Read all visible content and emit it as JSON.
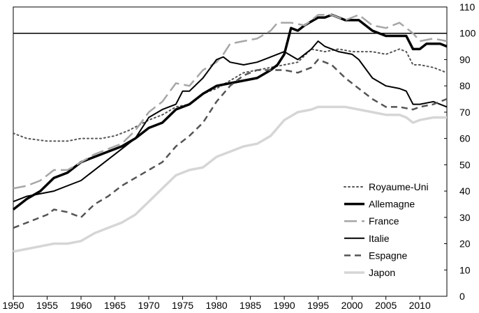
{
  "chart_data": {
    "type": "line",
    "title": "",
    "xlabel": "",
    "ylabel": "",
    "xlim": [
      1950,
      2014
    ],
    "ylim": [
      0,
      110
    ],
    "x_ticks": [
      1950,
      1955,
      1960,
      1965,
      1970,
      1975,
      1980,
      1985,
      1990,
      1995,
      2000,
      2005,
      2010
    ],
    "y_ticks": [
      0,
      10,
      20,
      30,
      40,
      50,
      60,
      70,
      80,
      90,
      100,
      110
    ],
    "y_axis_side": "right",
    "grid": false,
    "reference_line": 100,
    "legend_position": "bottom-right",
    "series": [
      {
        "name": "Royaume-Uni",
        "color": "#555555",
        "dash": "dotted",
        "width": 2,
        "points": [
          [
            1950,
            62
          ],
          [
            1952,
            60
          ],
          [
            1955,
            59
          ],
          [
            1958,
            59
          ],
          [
            1960,
            60
          ],
          [
            1963,
            60
          ],
          [
            1965,
            61
          ],
          [
            1967,
            63
          ],
          [
            1970,
            67
          ],
          [
            1972,
            69
          ],
          [
            1974,
            72
          ],
          [
            1976,
            73
          ],
          [
            1978,
            77
          ],
          [
            1980,
            79
          ],
          [
            1982,
            82
          ],
          [
            1984,
            85
          ],
          [
            1986,
            86
          ],
          [
            1988,
            87
          ],
          [
            1990,
            88
          ],
          [
            1992,
            89
          ],
          [
            1994,
            94
          ],
          [
            1996,
            93
          ],
          [
            1998,
            94
          ],
          [
            2000,
            93
          ],
          [
            2003,
            93
          ],
          [
            2005,
            92
          ],
          [
            2007,
            94
          ],
          [
            2008,
            93
          ],
          [
            2009,
            88
          ],
          [
            2010,
            88
          ],
          [
            2012,
            87
          ],
          [
            2014,
            85
          ]
        ]
      },
      {
        "name": "Allemagne",
        "color": "#000000",
        "dash": "solid",
        "width": 3.5,
        "points": [
          [
            1950,
            33
          ],
          [
            1952,
            37
          ],
          [
            1954,
            40
          ],
          [
            1956,
            45
          ],
          [
            1958,
            47
          ],
          [
            1960,
            51
          ],
          [
            1962,
            53
          ],
          [
            1964,
            55
          ],
          [
            1966,
            57
          ],
          [
            1968,
            60
          ],
          [
            1970,
            64
          ],
          [
            1972,
            66
          ],
          [
            1974,
            71
          ],
          [
            1976,
            73
          ],
          [
            1978,
            77
          ],
          [
            1980,
            80
          ],
          [
            1982,
            81
          ],
          [
            1984,
            82
          ],
          [
            1986,
            83
          ],
          [
            1988,
            86
          ],
          [
            1989,
            88
          ],
          [
            1990,
            92
          ],
          [
            1991,
            102
          ],
          [
            1992,
            101
          ],
          [
            1993,
            103
          ],
          [
            1995,
            106
          ],
          [
            1996,
            106
          ],
          [
            1997,
            107
          ],
          [
            1999,
            105
          ],
          [
            2001,
            105
          ],
          [
            2003,
            101
          ],
          [
            2005,
            99
          ],
          [
            2007,
            99
          ],
          [
            2008,
            99
          ],
          [
            2009,
            94
          ],
          [
            2010,
            94
          ],
          [
            2011,
            96
          ],
          [
            2013,
            96
          ],
          [
            2014,
            95
          ]
        ]
      },
      {
        "name": "France",
        "color": "#a6a6a6",
        "dash": "longdash",
        "width": 2.5,
        "points": [
          [
            1950,
            41
          ],
          [
            1952,
            42
          ],
          [
            1954,
            44
          ],
          [
            1956,
            48
          ],
          [
            1958,
            48
          ],
          [
            1960,
            51
          ],
          [
            1962,
            54
          ],
          [
            1964,
            56
          ],
          [
            1966,
            58
          ],
          [
            1968,
            63
          ],
          [
            1970,
            70
          ],
          [
            1972,
            74
          ],
          [
            1974,
            81
          ],
          [
            1976,
            80
          ],
          [
            1978,
            86
          ],
          [
            1980,
            89
          ],
          [
            1981,
            92
          ],
          [
            1982,
            96
          ],
          [
            1984,
            97
          ],
          [
            1986,
            98
          ],
          [
            1988,
            101
          ],
          [
            1989,
            104
          ],
          [
            1991,
            104
          ],
          [
            1993,
            103
          ],
          [
            1995,
            107
          ],
          [
            1997,
            107
          ],
          [
            1999,
            105
          ],
          [
            2001,
            107
          ],
          [
            2003,
            103
          ],
          [
            2005,
            102
          ],
          [
            2007,
            104
          ],
          [
            2008,
            102
          ],
          [
            2009,
            100
          ],
          [
            2010,
            97
          ],
          [
            2012,
            98
          ],
          [
            2014,
            97
          ]
        ]
      },
      {
        "name": "Italie",
        "color": "#000000",
        "dash": "solid",
        "width": 2,
        "points": [
          [
            1950,
            36
          ],
          [
            1952,
            38
          ],
          [
            1954,
            39
          ],
          [
            1956,
            40
          ],
          [
            1958,
            42
          ],
          [
            1960,
            44
          ],
          [
            1962,
            48
          ],
          [
            1964,
            52
          ],
          [
            1966,
            56
          ],
          [
            1968,
            60
          ],
          [
            1970,
            68
          ],
          [
            1972,
            71
          ],
          [
            1974,
            73
          ],
          [
            1975,
            78
          ],
          [
            1976,
            78
          ],
          [
            1978,
            83
          ],
          [
            1980,
            90
          ],
          [
            1981,
            91
          ],
          [
            1982,
            89
          ],
          [
            1984,
            88
          ],
          [
            1986,
            89
          ],
          [
            1988,
            91
          ],
          [
            1990,
            93
          ],
          [
            1992,
            90
          ],
          [
            1994,
            94
          ],
          [
            1995,
            97
          ],
          [
            1996,
            95
          ],
          [
            1998,
            93
          ],
          [
            2000,
            92
          ],
          [
            2001,
            90
          ],
          [
            2003,
            83
          ],
          [
            2005,
            80
          ],
          [
            2007,
            79
          ],
          [
            2008,
            78
          ],
          [
            2009,
            73
          ],
          [
            2010,
            73
          ],
          [
            2012,
            74
          ],
          [
            2014,
            72
          ]
        ]
      },
      {
        "name": "Espagne",
        "color": "#555555",
        "dash": "dashed",
        "width": 2.5,
        "points": [
          [
            1950,
            26
          ],
          [
            1952,
            28
          ],
          [
            1954,
            30
          ],
          [
            1955,
            31
          ],
          [
            1956,
            33
          ],
          [
            1958,
            32
          ],
          [
            1960,
            30
          ],
          [
            1962,
            35
          ],
          [
            1964,
            38
          ],
          [
            1966,
            42
          ],
          [
            1968,
            45
          ],
          [
            1970,
            48
          ],
          [
            1972,
            51
          ],
          [
            1974,
            57
          ],
          [
            1976,
            61
          ],
          [
            1978,
            66
          ],
          [
            1980,
            74
          ],
          [
            1982,
            80
          ],
          [
            1984,
            84
          ],
          [
            1986,
            86
          ],
          [
            1988,
            86
          ],
          [
            1990,
            86
          ],
          [
            1992,
            85
          ],
          [
            1994,
            87
          ],
          [
            1995,
            90
          ],
          [
            1997,
            88
          ],
          [
            1999,
            83
          ],
          [
            2001,
            79
          ],
          [
            2003,
            75
          ],
          [
            2005,
            72
          ],
          [
            2007,
            72
          ],
          [
            2009,
            71
          ],
          [
            2010,
            72
          ],
          [
            2012,
            73
          ],
          [
            2014,
            75
          ]
        ]
      },
      {
        "name": "Japon",
        "color": "#d6d6d6",
        "dash": "solid",
        "width": 3.5,
        "points": [
          [
            1950,
            17
          ],
          [
            1952,
            18
          ],
          [
            1954,
            19
          ],
          [
            1956,
            20
          ],
          [
            1958,
            20
          ],
          [
            1960,
            21
          ],
          [
            1962,
            24
          ],
          [
            1964,
            26
          ],
          [
            1966,
            28
          ],
          [
            1968,
            31
          ],
          [
            1970,
            36
          ],
          [
            1972,
            41
          ],
          [
            1974,
            46
          ],
          [
            1976,
            48
          ],
          [
            1978,
            49
          ],
          [
            1980,
            53
          ],
          [
            1982,
            55
          ],
          [
            1984,
            57
          ],
          [
            1986,
            58
          ],
          [
            1988,
            61
          ],
          [
            1990,
            67
          ],
          [
            1992,
            70
          ],
          [
            1994,
            71
          ],
          [
            1995,
            72
          ],
          [
            1997,
            72
          ],
          [
            1999,
            72
          ],
          [
            2001,
            71
          ],
          [
            2003,
            70
          ],
          [
            2005,
            69
          ],
          [
            2007,
            69
          ],
          [
            2008,
            68
          ],
          [
            2009,
            66
          ],
          [
            2010,
            67
          ],
          [
            2012,
            68
          ],
          [
            2014,
            68
          ]
        ]
      }
    ]
  }
}
